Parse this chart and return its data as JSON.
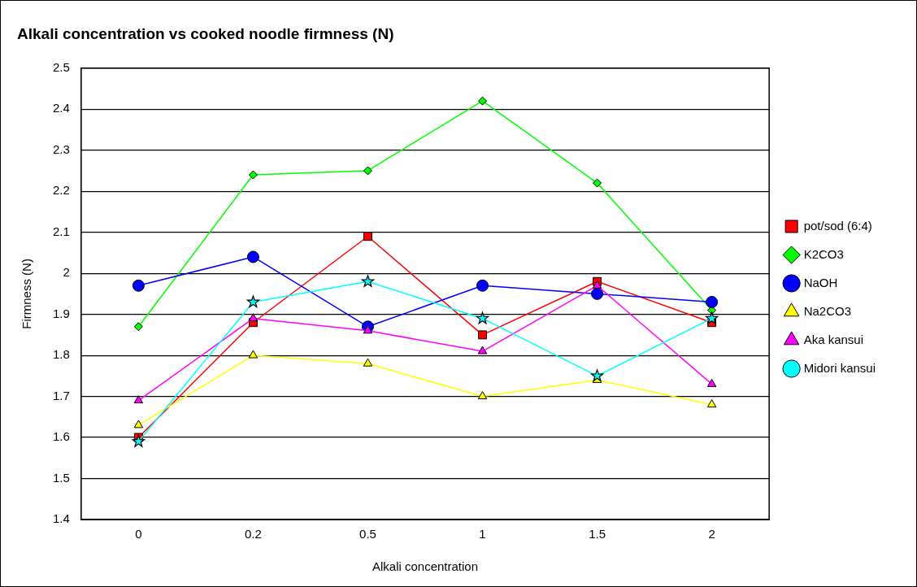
{
  "chart_data": {
    "type": "line",
    "title": "Alkali concentration vs cooked noodle firmness (N)",
    "xlabel": "Alkali concentration",
    "ylabel": "Firmness (N)",
    "categories": [
      "0",
      "0.2",
      "0.5",
      "1",
      "1.5",
      "2"
    ],
    "series": [
      {
        "name": "pot/sod (6:4)",
        "color": "#ff0000",
        "marker": "square",
        "values": [
          1.6,
          1.88,
          2.09,
          1.85,
          1.98,
          1.88
        ]
      },
      {
        "name": "K2CO3",
        "color": "#00ff00",
        "marker": "diamond",
        "values": [
          1.87,
          2.24,
          2.25,
          2.42,
          2.22,
          1.91
        ]
      },
      {
        "name": "NaOH",
        "color": "#0000ff",
        "marker": "circle",
        "values": [
          1.97,
          2.04,
          1.87,
          1.97,
          1.95,
          1.93
        ]
      },
      {
        "name": "Na2CO3",
        "color": "#ffff00",
        "marker": "triangle",
        "values": [
          1.63,
          1.8,
          1.78,
          1.7,
          1.74,
          1.68
        ]
      },
      {
        "name": "Aka kansui",
        "color": "#ff00ff",
        "marker": "triangle",
        "values": [
          1.69,
          1.89,
          1.86,
          1.81,
          1.97,
          1.73
        ]
      },
      {
        "name": "Midori kansui",
        "color": "#00ffff",
        "marker": "star",
        "values": [
          1.59,
          1.93,
          1.98,
          1.89,
          1.75,
          1.89
        ]
      }
    ],
    "ylim": [
      1.4,
      2.5
    ],
    "yticks": [
      1.4,
      1.5,
      1.6,
      1.7,
      1.8,
      1.9,
      2,
      2.1,
      2.2,
      2.3,
      2.4,
      2.5
    ],
    "grid": "y",
    "legend": "right"
  }
}
